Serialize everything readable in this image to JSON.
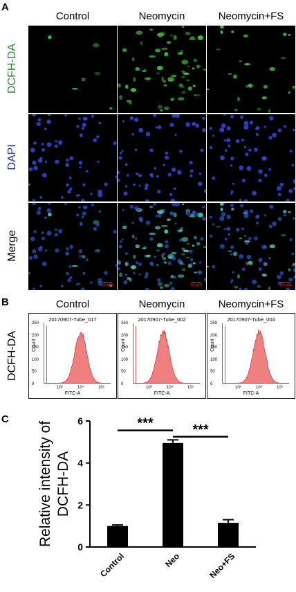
{
  "panel_a": {
    "letter": "A",
    "columns": [
      "Control",
      "Neomycin",
      "Neomycin+FS"
    ],
    "rows": [
      {
        "label": "DCFH-DA",
        "color": "#2e8b2e"
      },
      {
        "label": "DAPI",
        "color": "#2233aa"
      },
      {
        "label": "Merge",
        "color": "#000000"
      }
    ],
    "scale_bars": [
      "10 µm",
      "10 µm",
      "10 µm"
    ]
  },
  "panel_b": {
    "letter": "B",
    "columns": [
      "Control",
      "Neomycin",
      "Neomycin+FS"
    ],
    "row_label": "DCFH-DA",
    "tubes": [
      "20170907-Tube_017",
      "20170907-Tube_002",
      "20170907-Tube_004"
    ],
    "x_axis_label": "FITC-A",
    "y_axis_label": "Count",
    "x_ticks": [
      "10³",
      "10⁴",
      "10⁵"
    ],
    "y_ticks": [
      "250",
      "200",
      "150",
      "100",
      "50",
      "0"
    ],
    "hist_color": "#f08080"
  },
  "panel_c": {
    "letter": "C",
    "significance": [
      "***",
      "***"
    ]
  },
  "chart_data": {
    "type": "bar",
    "categories": [
      "Control",
      "Neo",
      "Neo+FS"
    ],
    "values": [
      1.0,
      4.95,
      1.15
    ],
    "errors": [
      0.05,
      0.15,
      0.15
    ],
    "ylabel": "Relative intensity of DCFH-DA",
    "ylim": [
      0,
      6
    ],
    "yticks": [
      0,
      2,
      4,
      6
    ],
    "bar_color": "#000000",
    "comparisons": [
      {
        "from": "Control",
        "to": "Neo",
        "label": "***"
      },
      {
        "from": "Neo",
        "to": "Neo+FS",
        "label": "***"
      }
    ]
  }
}
